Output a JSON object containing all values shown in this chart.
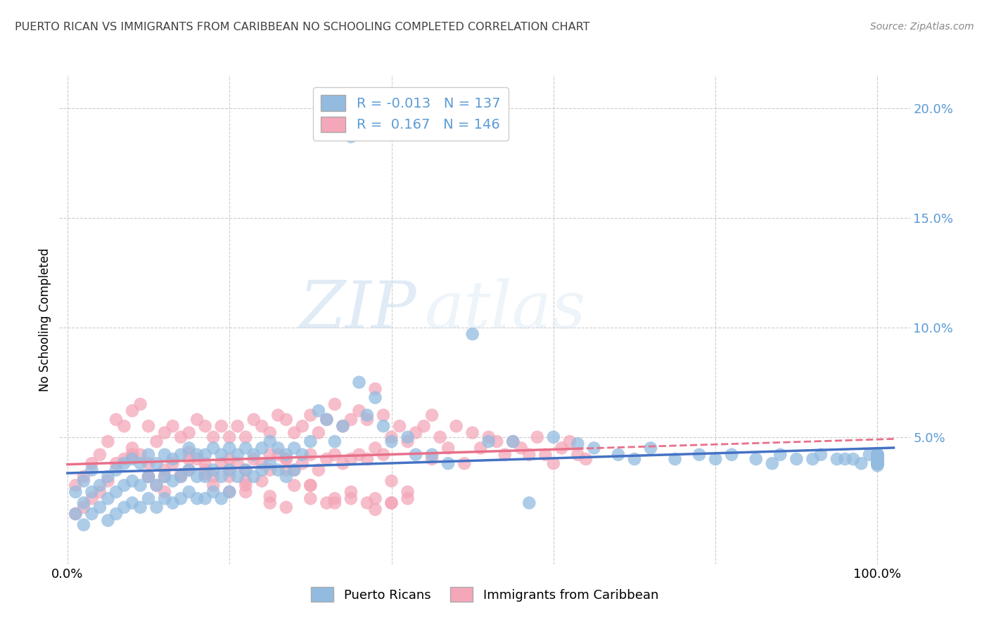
{
  "title": "PUERTO RICAN VS IMMIGRANTS FROM CARIBBEAN NO SCHOOLING COMPLETED CORRELATION CHART",
  "source": "Source: ZipAtlas.com",
  "ylabel": "No Schooling Completed",
  "blue_R": -0.013,
  "blue_N": 137,
  "pink_R": 0.167,
  "pink_N": 146,
  "blue_color": "#92BBDF",
  "pink_color": "#F4A7B9",
  "blue_line_color": "#4472C4",
  "pink_line_color": "#E8708A",
  "watermark_zip": "ZIP",
  "watermark_atlas": "atlas",
  "legend_label_blue": "Puerto Ricans",
  "legend_label_pink": "Immigrants from Caribbean",
  "background_color": "#FFFFFF",
  "grid_color": "#CCCCCC",
  "title_color": "#404040",
  "source_color": "#888888",
  "axis_label_color": "#5B9BD5",
  "blue_scatter_x": [
    0.01,
    0.01,
    0.02,
    0.02,
    0.02,
    0.03,
    0.03,
    0.03,
    0.04,
    0.04,
    0.05,
    0.05,
    0.05,
    0.06,
    0.06,
    0.06,
    0.07,
    0.07,
    0.07,
    0.08,
    0.08,
    0.08,
    0.09,
    0.09,
    0.09,
    0.1,
    0.1,
    0.1,
    0.11,
    0.11,
    0.11,
    0.12,
    0.12,
    0.12,
    0.13,
    0.13,
    0.13,
    0.14,
    0.14,
    0.14,
    0.15,
    0.15,
    0.15,
    0.16,
    0.16,
    0.16,
    0.17,
    0.17,
    0.17,
    0.18,
    0.18,
    0.18,
    0.19,
    0.19,
    0.19,
    0.2,
    0.2,
    0.2,
    0.21,
    0.21,
    0.22,
    0.22,
    0.23,
    0.23,
    0.24,
    0.24,
    0.25,
    0.25,
    0.26,
    0.26,
    0.27,
    0.27,
    0.28,
    0.28,
    0.29,
    0.3,
    0.31,
    0.32,
    0.33,
    0.34,
    0.35,
    0.36,
    0.37,
    0.38,
    0.39,
    0.4,
    0.42,
    0.43,
    0.45,
    0.47,
    0.5,
    0.52,
    0.55,
    0.57,
    0.6,
    0.63,
    0.65,
    0.68,
    0.7,
    0.72,
    0.75,
    0.78,
    0.8,
    0.82,
    0.85,
    0.87,
    0.88,
    0.9,
    0.92,
    0.93,
    0.95,
    0.96,
    0.97,
    0.98,
    0.99,
    1.0,
    1.0,
    1.0,
    1.0,
    1.0,
    1.0,
    1.0,
    1.0,
    1.0,
    1.0,
    1.0,
    1.0,
    1.0,
    1.0,
    1.0,
    1.0,
    1.0,
    1.0,
    1.0,
    1.0,
    1.0,
    1.0
  ],
  "blue_scatter_y": [
    0.025,
    0.015,
    0.03,
    0.02,
    0.01,
    0.025,
    0.015,
    0.035,
    0.028,
    0.018,
    0.032,
    0.022,
    0.012,
    0.035,
    0.025,
    0.015,
    0.038,
    0.028,
    0.018,
    0.04,
    0.03,
    0.02,
    0.038,
    0.028,
    0.018,
    0.042,
    0.032,
    0.022,
    0.038,
    0.028,
    0.018,
    0.042,
    0.032,
    0.022,
    0.04,
    0.03,
    0.02,
    0.042,
    0.032,
    0.022,
    0.045,
    0.035,
    0.025,
    0.042,
    0.032,
    0.022,
    0.042,
    0.032,
    0.022,
    0.045,
    0.035,
    0.025,
    0.042,
    0.032,
    0.022,
    0.045,
    0.035,
    0.025,
    0.042,
    0.032,
    0.045,
    0.035,
    0.042,
    0.032,
    0.045,
    0.035,
    0.048,
    0.038,
    0.045,
    0.035,
    0.042,
    0.032,
    0.045,
    0.035,
    0.042,
    0.048,
    0.062,
    0.058,
    0.048,
    0.055,
    0.187,
    0.075,
    0.06,
    0.068,
    0.055,
    0.048,
    0.05,
    0.042,
    0.042,
    0.038,
    0.097,
    0.048,
    0.048,
    0.02,
    0.05,
    0.047,
    0.045,
    0.042,
    0.04,
    0.045,
    0.04,
    0.042,
    0.04,
    0.042,
    0.04,
    0.038,
    0.042,
    0.04,
    0.04,
    0.042,
    0.04,
    0.04,
    0.04,
    0.038,
    0.042,
    0.04,
    0.038,
    0.037,
    0.042,
    0.04,
    0.04,
    0.038,
    0.04,
    0.042,
    0.038,
    0.04,
    0.038,
    0.04,
    0.038,
    0.042,
    0.04,
    0.04,
    0.038,
    0.04,
    0.04,
    0.04,
    0.042
  ],
  "pink_scatter_x": [
    0.01,
    0.01,
    0.02,
    0.02,
    0.03,
    0.03,
    0.04,
    0.04,
    0.05,
    0.05,
    0.06,
    0.06,
    0.07,
    0.07,
    0.08,
    0.08,
    0.09,
    0.09,
    0.1,
    0.1,
    0.11,
    0.11,
    0.12,
    0.12,
    0.13,
    0.13,
    0.14,
    0.14,
    0.15,
    0.15,
    0.16,
    0.16,
    0.17,
    0.17,
    0.18,
    0.18,
    0.19,
    0.19,
    0.2,
    0.2,
    0.21,
    0.21,
    0.22,
    0.22,
    0.23,
    0.23,
    0.24,
    0.24,
    0.25,
    0.25,
    0.26,
    0.26,
    0.27,
    0.27,
    0.28,
    0.28,
    0.29,
    0.29,
    0.3,
    0.3,
    0.31,
    0.31,
    0.32,
    0.32,
    0.33,
    0.33,
    0.34,
    0.34,
    0.35,
    0.35,
    0.36,
    0.36,
    0.37,
    0.37,
    0.38,
    0.38,
    0.39,
    0.39,
    0.4,
    0.4,
    0.41,
    0.42,
    0.43,
    0.44,
    0.45,
    0.46,
    0.47,
    0.48,
    0.49,
    0.5,
    0.51,
    0.52,
    0.53,
    0.54,
    0.55,
    0.56,
    0.57,
    0.58,
    0.59,
    0.6,
    0.61,
    0.62,
    0.63,
    0.64,
    0.2,
    0.22,
    0.25,
    0.27,
    0.3,
    0.08,
    0.1,
    0.12,
    0.15,
    0.17,
    0.2,
    0.22,
    0.25,
    0.27,
    0.3,
    0.33,
    0.35,
    0.38,
    0.4,
    0.42,
    0.45,
    0.08,
    0.1,
    0.12,
    0.14,
    0.15,
    0.17,
    0.18,
    0.2,
    0.22,
    0.24,
    0.25,
    0.27,
    0.28,
    0.3,
    0.32,
    0.33,
    0.35,
    0.37,
    0.38,
    0.4,
    0.42
  ],
  "pink_scatter_y": [
    0.028,
    0.015,
    0.032,
    0.018,
    0.038,
    0.022,
    0.042,
    0.025,
    0.048,
    0.03,
    0.058,
    0.038,
    0.055,
    0.04,
    0.062,
    0.045,
    0.065,
    0.042,
    0.055,
    0.032,
    0.048,
    0.028,
    0.052,
    0.035,
    0.055,
    0.038,
    0.05,
    0.032,
    0.052,
    0.035,
    0.058,
    0.04,
    0.055,
    0.038,
    0.05,
    0.032,
    0.055,
    0.038,
    0.05,
    0.032,
    0.055,
    0.038,
    0.05,
    0.035,
    0.058,
    0.04,
    0.055,
    0.038,
    0.052,
    0.035,
    0.06,
    0.042,
    0.058,
    0.04,
    0.052,
    0.035,
    0.055,
    0.038,
    0.06,
    0.042,
    0.052,
    0.035,
    0.058,
    0.04,
    0.065,
    0.042,
    0.055,
    0.038,
    0.058,
    0.04,
    0.062,
    0.042,
    0.058,
    0.04,
    0.072,
    0.045,
    0.06,
    0.042,
    0.05,
    0.03,
    0.055,
    0.048,
    0.052,
    0.055,
    0.06,
    0.05,
    0.045,
    0.055,
    0.038,
    0.052,
    0.045,
    0.05,
    0.048,
    0.042,
    0.048,
    0.045,
    0.042,
    0.05,
    0.042,
    0.038,
    0.045,
    0.048,
    0.042,
    0.04,
    0.04,
    0.028,
    0.042,
    0.035,
    0.028,
    0.042,
    0.038,
    0.032,
    0.04,
    0.033,
    0.025,
    0.03,
    0.02,
    0.04,
    0.028,
    0.02,
    0.022,
    0.022,
    0.02,
    0.025,
    0.04,
    0.042,
    0.032,
    0.025,
    0.033,
    0.043,
    0.035,
    0.028,
    0.035,
    0.025,
    0.03,
    0.023,
    0.018,
    0.028,
    0.022,
    0.02,
    0.022,
    0.025,
    0.02,
    0.017,
    0.02,
    0.022
  ]
}
